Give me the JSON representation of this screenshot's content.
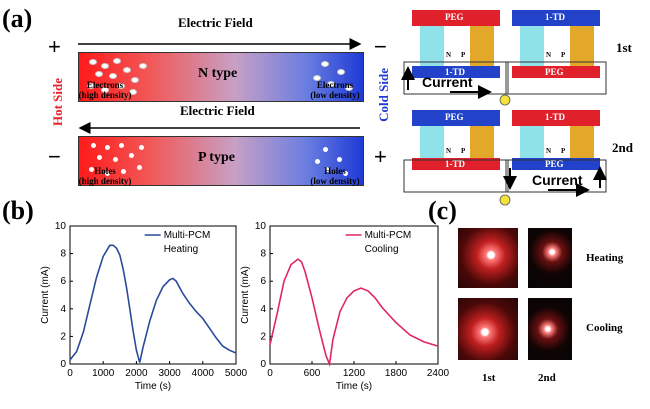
{
  "panel_a": {
    "label": "(a)",
    "electric_field": "Electric Field",
    "n_type": "N type",
    "p_type": "P type",
    "hot_side": "Hot Side",
    "cold_side": "Cold Side",
    "electrons_high": "Electrons\n(high density)",
    "electrons_low": "Electrons\n(low density)",
    "holes_high": "Holes\n(high density)",
    "holes_low": "Holes\n(low density)",
    "plus": "+",
    "minus": "−",
    "diagrams": {
      "peg": "PEG",
      "td": "1-TD",
      "current": "Current",
      "n": "N",
      "p": "P",
      "first": "1st",
      "second": "2nd"
    },
    "colors": {
      "hot": "#e8212b",
      "cold": "#1f3ad6",
      "cyan": "#8fe3e8",
      "gold": "#e3a72a",
      "red_block": "#e0202a",
      "blue_block": "#2142c9"
    }
  },
  "panel_b": {
    "label": "(b)"
  },
  "panel_c": {
    "label": "(c)",
    "heating": "Heating",
    "cooling": "Cooling",
    "first": "1st",
    "second": "2nd"
  },
  "chart_data": [
    {
      "type": "line",
      "xlabel": "Time (s)",
      "ylabel": "Current (mA)",
      "xlim": [
        0,
        5000
      ],
      "ylim": [
        0,
        10
      ],
      "xticks": [
        0,
        1000,
        2000,
        3000,
        4000,
        5000
      ],
      "yticks": [
        0,
        2,
        4,
        6,
        8,
        10
      ],
      "legend": [
        "Multi-PCM",
        "Heating"
      ],
      "series": [
        {
          "name": "Multi-PCM",
          "color": "#2a4a9a",
          "x": [
            0,
            200,
            400,
            600,
            800,
            1000,
            1200,
            1300,
            1400,
            1500,
            1600,
            1700,
            1800,
            1900,
            2000,
            2100,
            2200,
            2400,
            2600,
            2800,
            3000,
            3100,
            3200,
            3400,
            3600,
            3800,
            4000,
            4200,
            4400,
            4600,
            4800,
            5000
          ],
          "y": [
            0.3,
            0.9,
            2.3,
            4.3,
            6.3,
            7.8,
            8.6,
            8.6,
            8.4,
            7.9,
            6.9,
            5.6,
            4.0,
            2.4,
            1.0,
            0.1,
            1.2,
            3.1,
            4.6,
            5.6,
            6.1,
            6.2,
            6.0,
            5.1,
            4.4,
            3.8,
            3.3,
            2.6,
            1.9,
            1.3,
            1.0,
            0.8
          ]
        }
      ]
    },
    {
      "type": "line",
      "xlabel": "Time (s)",
      "ylabel": "Current (mA)",
      "xlim": [
        0,
        2400
      ],
      "ylim": [
        0,
        10
      ],
      "xticks": [
        0,
        600,
        1200,
        1800,
        2400
      ],
      "yticks": [
        0,
        2,
        4,
        6,
        8,
        10
      ],
      "legend": [
        "Multi-PCM",
        "Cooling"
      ],
      "series": [
        {
          "name": "Multi-PCM",
          "color": "#e0256a",
          "x": [
            0,
            100,
            200,
            300,
            400,
            450,
            500,
            600,
            700,
            800,
            850,
            900,
            1000,
            1100,
            1200,
            1300,
            1400,
            1500,
            1600,
            1800,
            2000,
            2200,
            2400
          ],
          "y": [
            1.4,
            3.6,
            6.0,
            7.2,
            7.6,
            7.4,
            6.7,
            4.8,
            2.6,
            0.6,
            0.0,
            1.8,
            3.8,
            4.8,
            5.3,
            5.5,
            5.3,
            4.8,
            4.1,
            3.0,
            2.1,
            1.6,
            1.3
          ]
        }
      ]
    }
  ]
}
